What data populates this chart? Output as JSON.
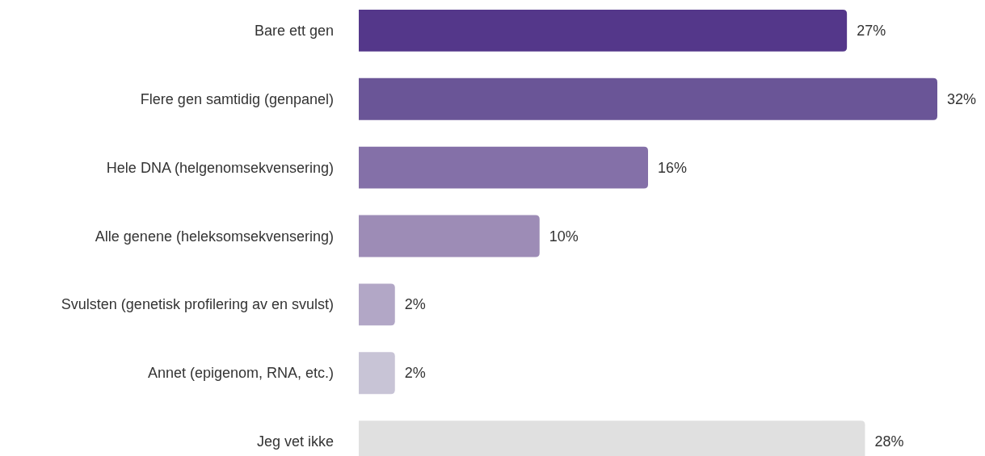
{
  "chart_data": {
    "type": "bar",
    "orientation": "horizontal",
    "relative": false,
    "categories": [
      "Bare ett gen",
      "Flere gen samtidig (genpanel)",
      "Hele DNA (helgenomsekvensering)",
      "Alle genene (heleksomsekvensering)",
      "Svulsten (genetisk profilering av en svulst)",
      "Annet (epigenom, RNA, etc.)",
      "Jeg vet ikke"
    ],
    "values": [
      27,
      32,
      16,
      10,
      2,
      2,
      28
    ],
    "colors": [
      "#54378a",
      "#6a5597",
      "#8470a8",
      "#9d8cb6",
      "#b2a7c6",
      "#c8c4d6",
      "#e0e0e0"
    ],
    "value_labels": [
      "27%",
      "32%",
      "16%",
      "10%",
      "2%",
      "2%",
      "28%"
    ]
  }
}
